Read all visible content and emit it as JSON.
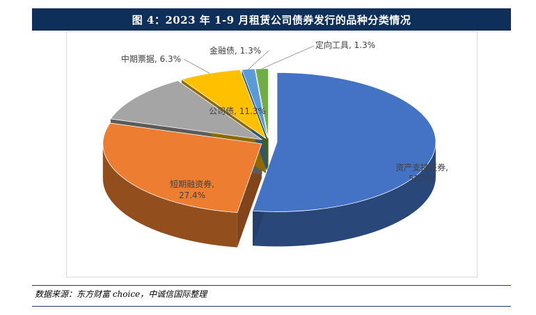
{
  "figure": {
    "title": "图 4：2023 年 1-9 月租赁公司债券发行的品种分类情况",
    "source": "数据来源：东方财富 choice，中诚信国际整理"
  },
  "chart_data": {
    "type": "pie",
    "style": "3d-exploded",
    "slices": [
      {
        "label": "资产支持证券",
        "value": 52.5,
        "color": "#4472c4",
        "label_position": "inside"
      },
      {
        "label": "短期融资券",
        "value": 27.4,
        "color": "#ed7d31",
        "label_position": "inside"
      },
      {
        "label": "公司债",
        "value": 11.3,
        "color": "#a5a5a5",
        "label_position": "inside"
      },
      {
        "label": "中期票据",
        "value": 6.3,
        "color": "#ffc000",
        "label_position": "outside"
      },
      {
        "label": "金融债",
        "value": 1.3,
        "color": "#5b9bd5",
        "label_position": "outside"
      },
      {
        "label": "定向工具",
        "value": 1.3,
        "color": "#70ad47",
        "label_position": "outside"
      }
    ],
    "value_suffix": "%",
    "legend": "none"
  }
}
